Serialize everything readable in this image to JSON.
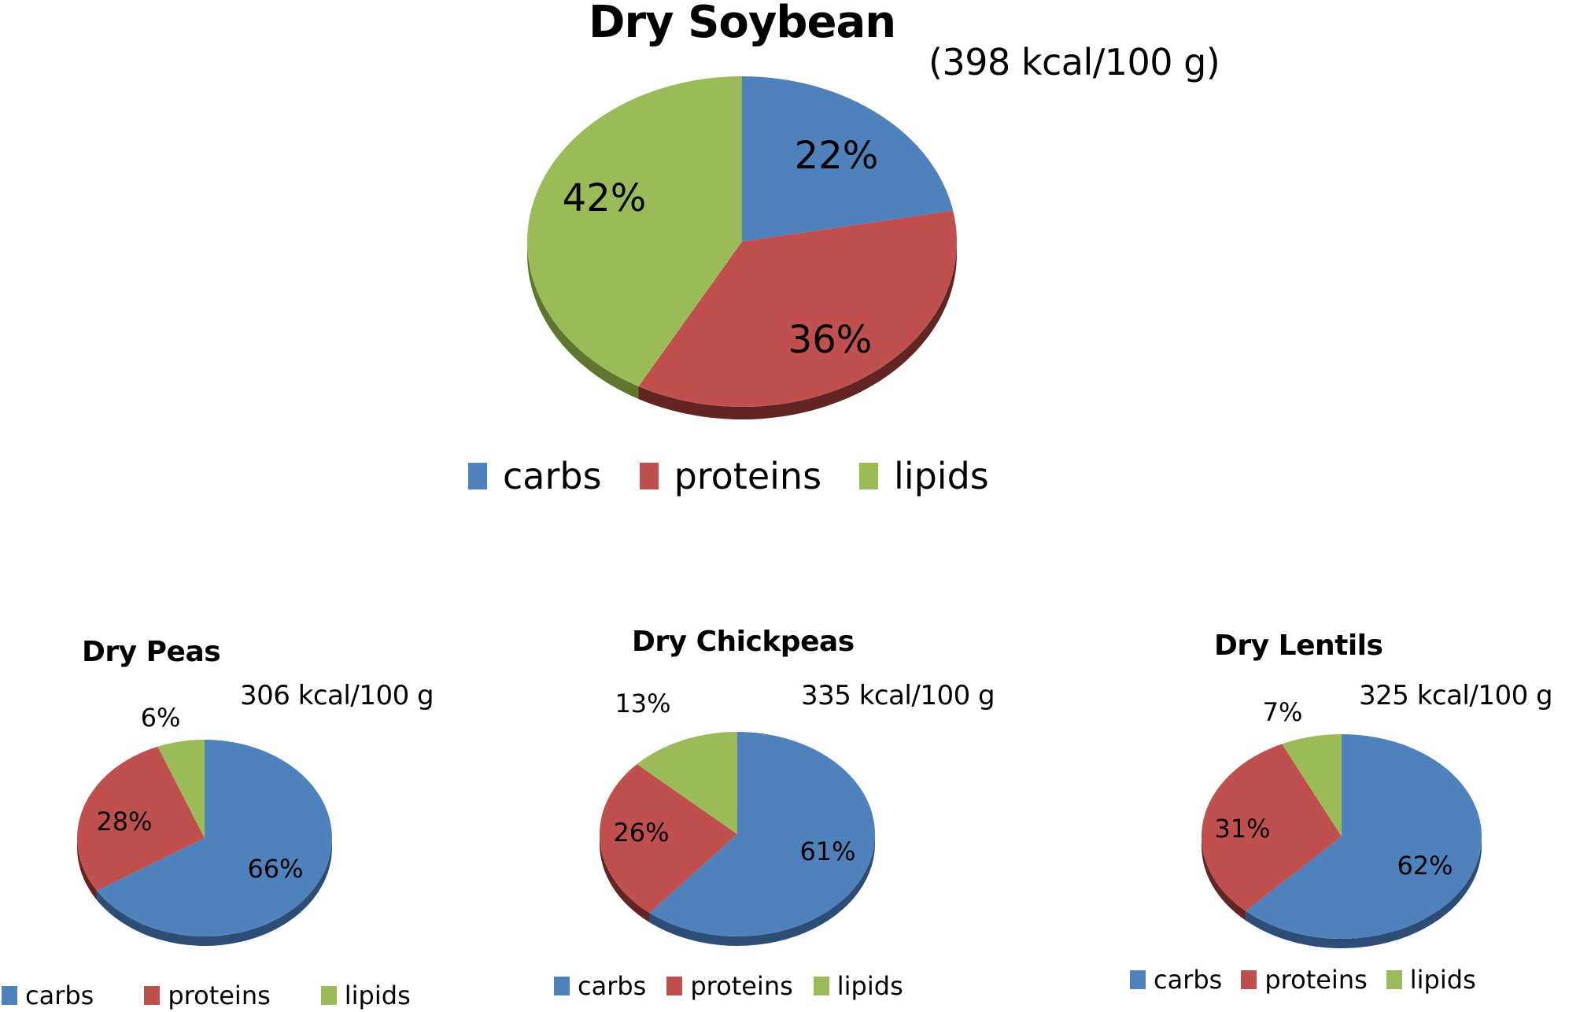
{
  "colors": {
    "carbs": "#4f81bd",
    "proteins": "#c0504d",
    "lipids": "#9bbb59",
    "carbs_side": "#2c4d75",
    "proteins_side": "#632523",
    "lipids_side": "#5f7530"
  },
  "legend_labels": [
    "carbs",
    "proteins",
    "lipids"
  ],
  "charts": [
    {
      "id": "soybean",
      "title": "Dry Soybean",
      "kcal": "(398 kcal/100 g)",
      "slices": [
        {
          "key": "carbs",
          "value": 22,
          "label": "22%"
        },
        {
          "key": "proteins",
          "value": 36,
          "label": "36%"
        },
        {
          "key": "lipids",
          "value": 42,
          "label": "42%"
        }
      ]
    },
    {
      "id": "peas",
      "title": "Dry  Peas",
      "kcal": "306 kcal/100 g",
      "slices": [
        {
          "key": "carbs",
          "value": 66,
          "label": "66%"
        },
        {
          "key": "proteins",
          "value": 28,
          "label": "28%"
        },
        {
          "key": "lipids",
          "value": 6,
          "label": "6%"
        }
      ]
    },
    {
      "id": "chickpeas",
      "title": "Dry Chickpeas",
      "kcal": "335 kcal/100 g",
      "slices": [
        {
          "key": "carbs",
          "value": 61,
          "label": "61%"
        },
        {
          "key": "proteins",
          "value": 26,
          "label": "26%"
        },
        {
          "key": "lipids",
          "value": 13,
          "label": "13%"
        }
      ]
    },
    {
      "id": "lentils",
      "title": "Dry Lentils",
      "kcal": "325 kcal/100 g",
      "slices": [
        {
          "key": "carbs",
          "value": 62,
          "label": "62%"
        },
        {
          "key": "proteins",
          "value": 31,
          "label": "31%"
        },
        {
          "key": "lipids",
          "value": 7,
          "label": "7%"
        }
      ]
    }
  ],
  "chart_data": [
    {
      "type": "pie",
      "title": "Dry Soybean",
      "subtitle": "(398 kcal/100 g)",
      "categories": [
        "carbs",
        "proteins",
        "lipids"
      ],
      "values": [
        22,
        36,
        42
      ],
      "unit": "%",
      "legend_position": "bottom"
    },
    {
      "type": "pie",
      "title": "Dry Peas",
      "subtitle": "306 kcal/100 g",
      "categories": [
        "carbs",
        "proteins",
        "lipids"
      ],
      "values": [
        66,
        28,
        6
      ],
      "unit": "%",
      "legend_position": "bottom"
    },
    {
      "type": "pie",
      "title": "Dry Chickpeas",
      "subtitle": "335 kcal/100 g",
      "categories": [
        "carbs",
        "proteins",
        "lipids"
      ],
      "values": [
        61,
        26,
        13
      ],
      "unit": "%",
      "legend_position": "bottom"
    },
    {
      "type": "pie",
      "title": "Dry Lentils",
      "subtitle": "325 kcal/100 g",
      "categories": [
        "carbs",
        "proteins",
        "lipids"
      ],
      "values": [
        62,
        31,
        7
      ],
      "unit": "%",
      "legend_position": "bottom"
    }
  ]
}
